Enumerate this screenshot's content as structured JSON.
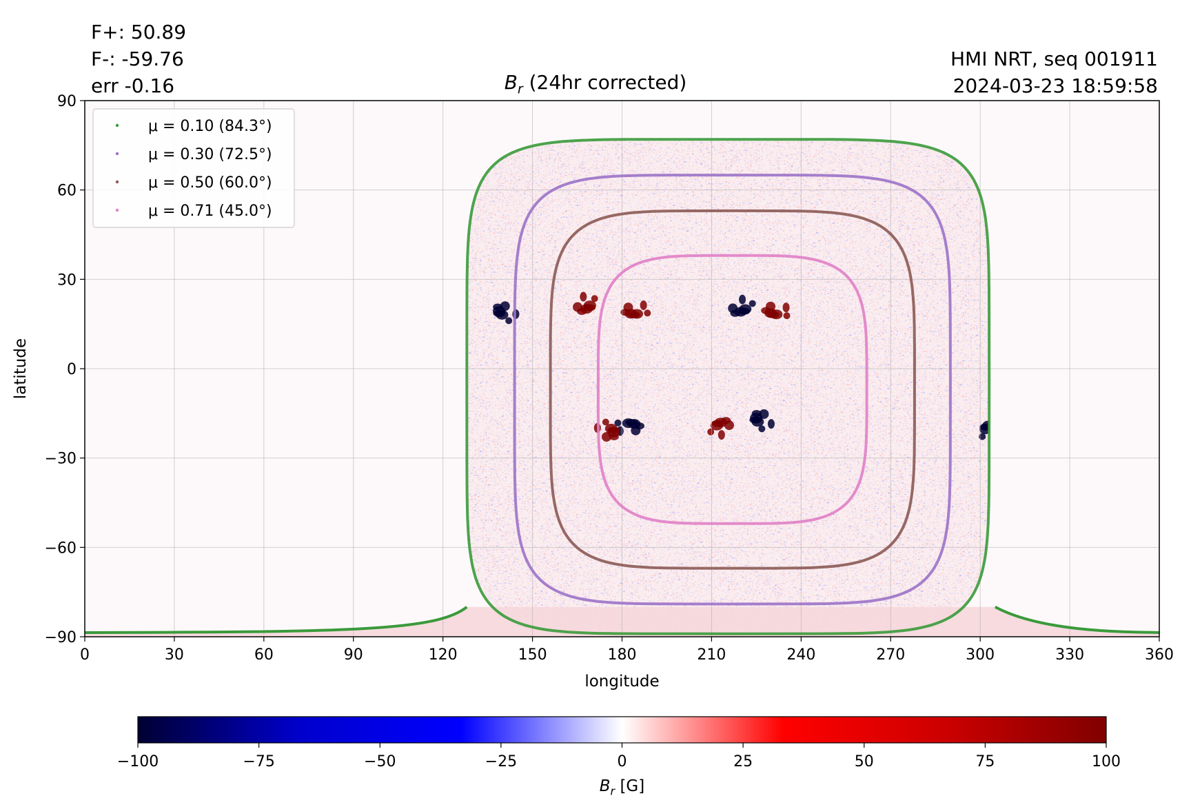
{
  "stats": {
    "flux_pos": "F+: 50.89",
    "flux_neg": "F-: -59.76",
    "err": "err -0.16"
  },
  "source": {
    "instrument": "HMI NRT, seq 001911",
    "timestamp": "2024-03-23 18:59:58"
  },
  "chart_data": {
    "type": "heatmap",
    "title": "B_r (24hr corrected)",
    "xlabel": "longitude",
    "ylabel": "latitude",
    "xlim": [
      0,
      360
    ],
    "ylim": [
      -90,
      90
    ],
    "x_ticks": [
      0,
      30,
      60,
      90,
      120,
      150,
      180,
      210,
      240,
      270,
      300,
      330,
      360
    ],
    "y_ticks": [
      90,
      60,
      30,
      0,
      -30,
      -60,
      -90
    ],
    "y_tick_labels": [
      "90",
      "60",
      "30",
      "0",
      "−30",
      "−60",
      "−90"
    ],
    "grid": true,
    "legend_position": "top-left",
    "disk_center": {
      "lon": 216,
      "lat": -12
    },
    "contours": [
      {
        "name": "μ = 0.10 (84.3°)",
        "mu": 0.1,
        "angle_deg": 84.3,
        "color": "#3a9a3a",
        "lat_extent": [
          -89,
          77
        ],
        "lon_extent": [
          128,
          303
        ]
      },
      {
        "name": "μ = 0.30 (72.5°)",
        "mu": 0.3,
        "angle_deg": 72.5,
        "color": "#9b72c8",
        "lat_extent": [
          -79,
          65
        ],
        "lon_extent": [
          144,
          290
        ]
      },
      {
        "name": "μ = 0.50 (60.0°)",
        "mu": 0.5,
        "angle_deg": 60.0,
        "color": "#8b5a54",
        "lat_extent": [
          -67,
          53
        ],
        "lon_extent": [
          156,
          278
        ]
      },
      {
        "name": "μ = 0.71 (45.0°)",
        "mu": 0.71,
        "angle_deg": 45.0,
        "color": "#e07fc6",
        "lat_extent": [
          -52,
          38
        ],
        "lon_extent": [
          172,
          262
        ]
      }
    ],
    "active_regions": [
      {
        "lon": 220,
        "lat": 20,
        "polarity": "negative"
      },
      {
        "lon": 231,
        "lat": 19,
        "polarity": "positive"
      },
      {
        "lon": 226,
        "lat": -17,
        "polarity": "negative"
      },
      {
        "lon": 213,
        "lat": -19,
        "polarity": "positive"
      },
      {
        "lon": 183,
        "lat": -19,
        "polarity": "negative"
      },
      {
        "lon": 176,
        "lat": -21,
        "polarity": "positive"
      },
      {
        "lon": 168,
        "lat": 21,
        "polarity": "positive"
      },
      {
        "lon": 184,
        "lat": 19,
        "polarity": "positive"
      },
      {
        "lon": 140,
        "lat": 19,
        "polarity": "negative"
      },
      {
        "lon": 303,
        "lat": -20,
        "polarity": "negative"
      }
    ],
    "colorbar": {
      "label": "B_r [G]",
      "min": -100,
      "max": 100,
      "ticks": [
        -100,
        -75,
        -50,
        -25,
        0,
        25,
        50,
        75,
        100
      ],
      "tick_labels": [
        "−100",
        "−75",
        "−50",
        "−25",
        "0",
        "25",
        "50",
        "75",
        "100"
      ],
      "colormap": "seismic",
      "colors": [
        "#000033",
        "#0000cc",
        "#0000ff",
        "#ffffff",
        "#ff0000",
        "#cc0000",
        "#800000"
      ]
    }
  }
}
